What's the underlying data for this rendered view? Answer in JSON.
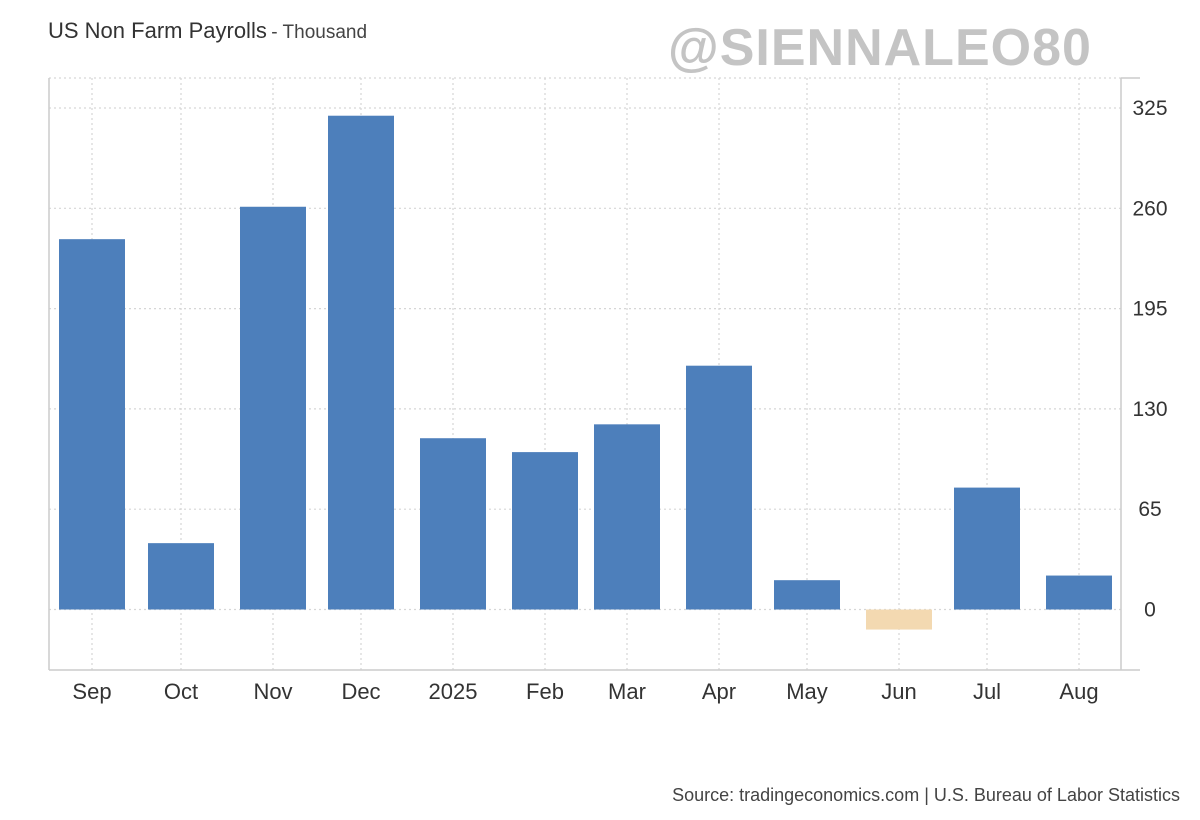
{
  "watermark": "@SIENNALEO80",
  "source": "Source: tradingeconomics.com | U.S. Bureau of Labor Statistics",
  "colors": {
    "positive": "#4d7fbb",
    "negative": "#f3d9b1",
    "grid": "#d6d6d6",
    "axis": "#cccccc"
  },
  "chart_data": {
    "type": "bar",
    "title": "US Non Farm Payrolls",
    "subtitle": "- Thousand",
    "categories": [
      "Sep",
      "Oct",
      "Nov",
      "Dec",
      "2025",
      "Feb",
      "Mar",
      "Apr",
      "May",
      "Jun",
      "Jul",
      "Aug"
    ],
    "values": [
      240,
      43,
      261,
      320,
      111,
      102,
      120,
      158,
      19,
      -13,
      79,
      22
    ],
    "y_ticks": [
      0,
      65,
      130,
      195,
      260,
      325
    ],
    "ylim": [
      -40,
      345
    ],
    "grid": true,
    "y_axis_side": "right",
    "legend": "none"
  }
}
